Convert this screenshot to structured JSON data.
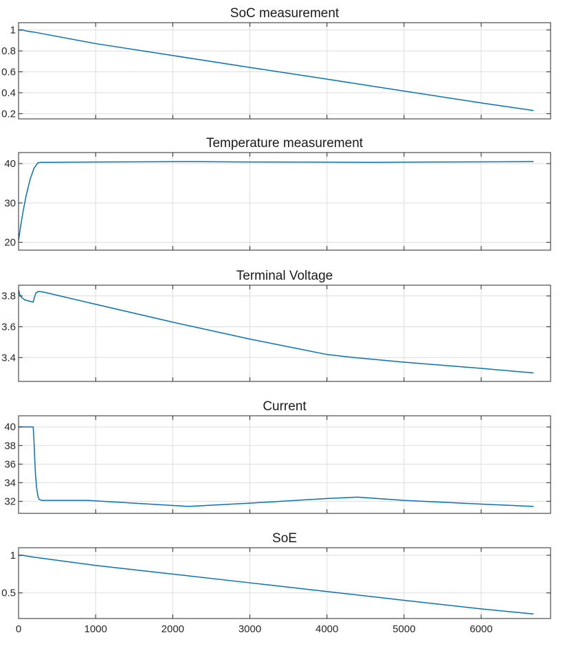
{
  "chart_data": [
    {
      "type": "line",
      "title": "SoC measurement",
      "xlim": [
        0,
        6900
      ],
      "ylim": [
        0.15,
        1.07
      ],
      "xticks": [
        0,
        1000,
        2000,
        3000,
        4000,
        5000,
        6000
      ],
      "yticks": [
        0.2,
        0.4,
        0.6,
        0.8,
        1
      ],
      "ytick_labels": [
        "0.2",
        "0.4",
        "0.6",
        "0.8",
        "1"
      ],
      "show_xtick_labels": false,
      "grid": true,
      "color": "#0072BD",
      "x": [
        0,
        60,
        100,
        200,
        1000,
        2000,
        3000,
        4000,
        5000,
        6000,
        6680
      ],
      "y": [
        1.0,
        1.0,
        0.99,
        0.98,
        0.87,
        0.756,
        0.642,
        0.53,
        0.416,
        0.303,
        0.23
      ]
    },
    {
      "type": "line",
      "title": "Temperature measurement",
      "xlim": [
        0,
        6900
      ],
      "ylim": [
        18,
        42.8
      ],
      "xticks": [
        0,
        1000,
        2000,
        3000,
        4000,
        5000,
        6000
      ],
      "yticks": [
        20,
        30,
        40
      ],
      "ytick_labels": [
        "20",
        "30",
        "40"
      ],
      "show_xtick_labels": false,
      "grid": true,
      "color": "#0072BD",
      "x": [
        0,
        30,
        60,
        100,
        150,
        200,
        250,
        280,
        350,
        1000,
        2200,
        3000,
        4000,
        4600,
        5500,
        6680
      ],
      "y": [
        20.5,
        24.5,
        28,
        32,
        36,
        38.8,
        40.2,
        40.3,
        40.3,
        40.4,
        40.5,
        40.4,
        40.35,
        40.3,
        40.4,
        40.5
      ]
    },
    {
      "type": "line",
      "title": "Terminal Voltage",
      "xlim": [
        0,
        6900
      ],
      "ylim": [
        3.245,
        3.87
      ],
      "xticks": [
        0,
        1000,
        2000,
        3000,
        4000,
        5000,
        6000
      ],
      "yticks": [
        3.4,
        3.6,
        3.8
      ],
      "ytick_labels": [
        "3.4",
        "3.6",
        "3.8"
      ],
      "show_xtick_labels": false,
      "grid": true,
      "color": "#0072BD",
      "x": [
        0,
        15,
        40,
        80,
        130,
        190,
        205,
        225,
        260,
        320,
        1000,
        2000,
        3000,
        4000,
        4350,
        5000,
        6000,
        6680
      ],
      "y": [
        3.84,
        3.81,
        3.79,
        3.775,
        3.768,
        3.76,
        3.79,
        3.82,
        3.83,
        3.826,
        3.746,
        3.63,
        3.52,
        3.42,
        3.4,
        3.37,
        3.33,
        3.3
      ]
    },
    {
      "type": "line",
      "title": "Current",
      "xlim": [
        0,
        6900
      ],
      "ylim": [
        30.7,
        41.2
      ],
      "xticks": [
        0,
        1000,
        2000,
        3000,
        4000,
        5000,
        6000
      ],
      "yticks": [
        32,
        34,
        36,
        38,
        40
      ],
      "ytick_labels": [
        "32",
        "34",
        "36",
        "38",
        "40"
      ],
      "show_xtick_labels": false,
      "grid": true,
      "color": "#0072BD",
      "x": [
        0,
        100,
        190,
        200,
        210,
        220,
        235,
        250,
        265,
        300,
        900,
        2200,
        3000,
        4000,
        4400,
        5000,
        6000,
        6680
      ],
      "y": [
        40,
        40,
        40,
        38.5,
        36.5,
        34.8,
        33.4,
        32.6,
        32.2,
        32.1,
        32.1,
        31.45,
        31.8,
        32.3,
        32.45,
        32.1,
        31.7,
        31.45
      ]
    },
    {
      "type": "line",
      "title": "SoE",
      "xlim": [
        0,
        6900
      ],
      "ylim": [
        0.16,
        1.1
      ],
      "xticks": [
        0,
        1000,
        2000,
        3000,
        4000,
        5000,
        6000
      ],
      "xtick_labels": [
        "0",
        "1000",
        "2000",
        "3000",
        "4000",
        "5000",
        "6000"
      ],
      "yticks": [
        0.5,
        1
      ],
      "ytick_labels": [
        "0.5",
        "1"
      ],
      "show_xtick_labels": true,
      "grid": true,
      "color": "#0072BD",
      "x": [
        0,
        60,
        100,
        200,
        1000,
        2000,
        3000,
        4000,
        5000,
        6000,
        6680
      ],
      "y": [
        1.0,
        1.0,
        0.99,
        0.975,
        0.865,
        0.75,
        0.634,
        0.518,
        0.402,
        0.288,
        0.22
      ]
    }
  ]
}
